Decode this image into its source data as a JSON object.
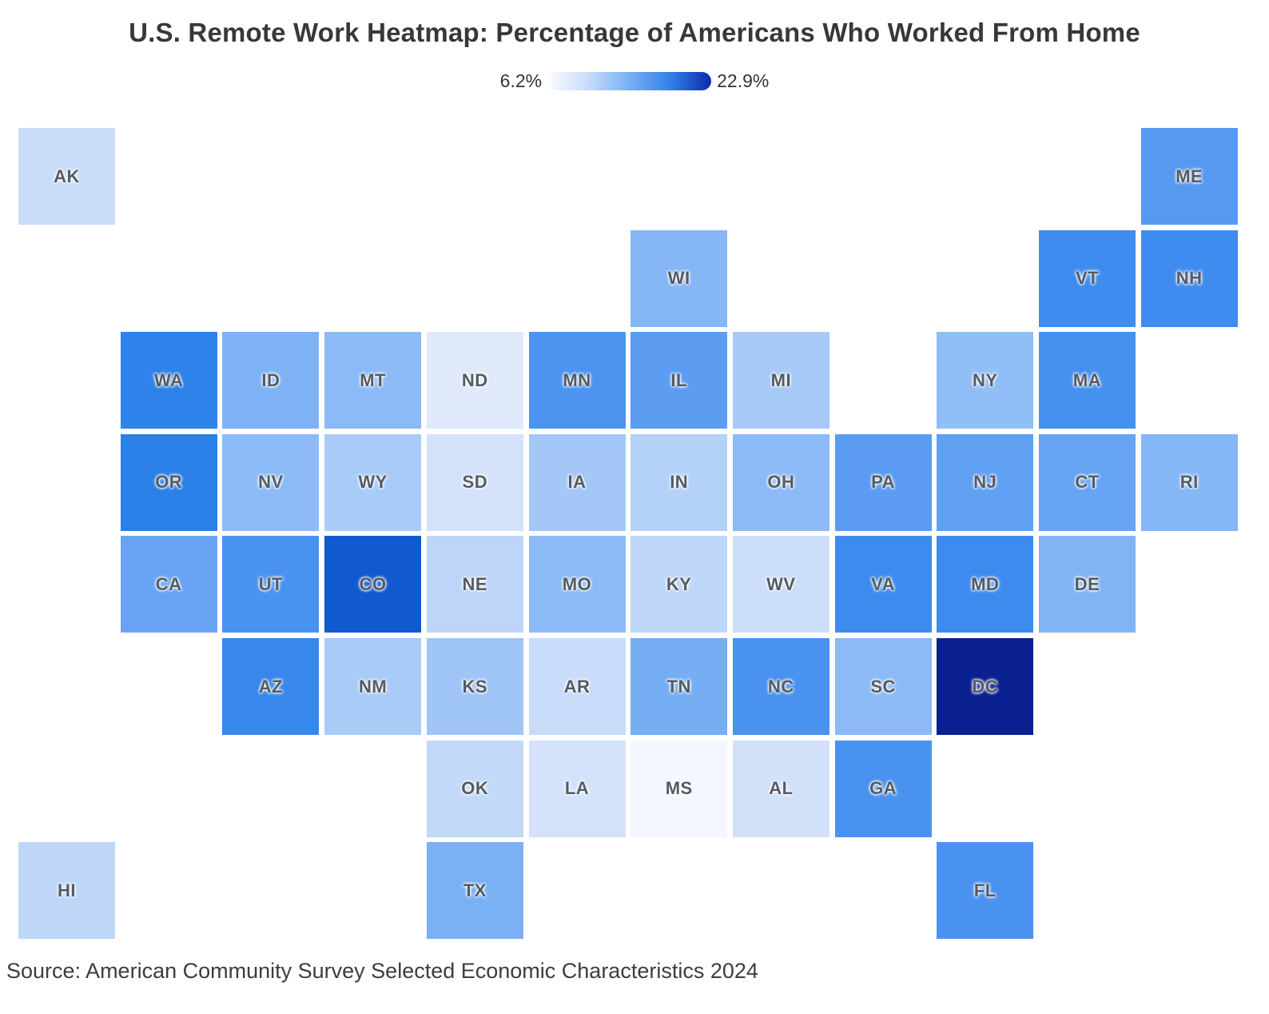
{
  "title": "U.S. Remote Work Heatmap: Percentage of Americans Who Worked From Home",
  "legend": {
    "min_label": "6.2%",
    "max_label": "22.9%",
    "gradient_stops": [
      "#fbfdff",
      "#c7dbf9",
      "#79b0f4",
      "#3081ea",
      "#0c2aad"
    ]
  },
  "source": "Source: American Community Survey Selected Economic Characteristics 2024",
  "chart_data": {
    "type": "heatmap",
    "subtype": "us-state-tile-grid",
    "unit": "%",
    "value_range": [
      6.2,
      22.9
    ],
    "legend_position": "top-center",
    "min_state": "MS",
    "max_state": "DC",
    "states": [
      {
        "abbr": "AK",
        "row": 1,
        "col": 1,
        "color": "#c9ddf8",
        "value_est_pct": 8.9
      },
      {
        "abbr": "ME",
        "row": 1,
        "col": 12,
        "color": "#5599f1",
        "value_est_pct": 14.4
      },
      {
        "abbr": "WI",
        "row": 2,
        "col": 7,
        "color": "#85b6f5",
        "value_est_pct": 12.0
      },
      {
        "abbr": "VT",
        "row": 2,
        "col": 11,
        "color": "#3e8cef",
        "value_est_pct": 15.5
      },
      {
        "abbr": "NH",
        "row": 2,
        "col": 12,
        "color": "#3e8cef",
        "value_est_pct": 15.5
      },
      {
        "abbr": "WA",
        "row": 3,
        "col": 2,
        "color": "#2e82e9",
        "value_est_pct": 16.4
      },
      {
        "abbr": "ID",
        "row": 3,
        "col": 3,
        "color": "#7fb2f4",
        "value_est_pct": 12.4
      },
      {
        "abbr": "MT",
        "row": 3,
        "col": 4,
        "color": "#8cbaf6",
        "value_est_pct": 11.7
      },
      {
        "abbr": "ND",
        "row": 3,
        "col": 5,
        "color": "#e0e9fa",
        "value_est_pct": 7.5
      },
      {
        "abbr": "MN",
        "row": 3,
        "col": 6,
        "color": "#4d94f0",
        "value_est_pct": 14.9
      },
      {
        "abbr": "IL",
        "row": 3,
        "col": 7,
        "color": "#5c9df1",
        "value_est_pct": 14.0
      },
      {
        "abbr": "MI",
        "row": 3,
        "col": 8,
        "color": "#a6c9f7",
        "value_est_pct": 10.5
      },
      {
        "abbr": "NY",
        "row": 3,
        "col": 10,
        "color": "#90bef6",
        "value_est_pct": 11.5
      },
      {
        "abbr": "MA",
        "row": 3,
        "col": 11,
        "color": "#4690ef",
        "value_est_pct": 15.3
      },
      {
        "abbr": "OR",
        "row": 4,
        "col": 2,
        "color": "#2b80e8",
        "value_est_pct": 16.6
      },
      {
        "abbr": "NV",
        "row": 4,
        "col": 3,
        "color": "#8cbaf6",
        "value_est_pct": 11.7
      },
      {
        "abbr": "WY",
        "row": 4,
        "col": 4,
        "color": "#a9cbf8",
        "value_est_pct": 10.4
      },
      {
        "abbr": "SD",
        "row": 4,
        "col": 5,
        "color": "#d4e2fa",
        "value_est_pct": 8.2
      },
      {
        "abbr": "IA",
        "row": 4,
        "col": 6,
        "color": "#a3c7f7",
        "value_est_pct": 10.7
      },
      {
        "abbr": "IN",
        "row": 4,
        "col": 7,
        "color": "#b4d1f8",
        "value_est_pct": 9.9
      },
      {
        "abbr": "OH",
        "row": 4,
        "col": 8,
        "color": "#8cbaf6",
        "value_est_pct": 11.7
      },
      {
        "abbr": "PA",
        "row": 4,
        "col": 9,
        "color": "#5b9cf2",
        "value_est_pct": 14.0
      },
      {
        "abbr": "NJ",
        "row": 4,
        "col": 10,
        "color": "#60a0f2",
        "value_est_pct": 13.9
      },
      {
        "abbr": "CT",
        "row": 4,
        "col": 11,
        "color": "#66a3f3",
        "value_est_pct": 13.7
      },
      {
        "abbr": "RI",
        "row": 4,
        "col": 12,
        "color": "#85b6f5",
        "value_est_pct": 12.0
      },
      {
        "abbr": "CA",
        "row": 5,
        "col": 2,
        "color": "#68a4f3",
        "value_est_pct": 13.5
      },
      {
        "abbr": "UT",
        "row": 5,
        "col": 3,
        "color": "#4a92f0",
        "value_est_pct": 15.0
      },
      {
        "abbr": "CO",
        "row": 5,
        "col": 4,
        "color": "#1159d0",
        "value_est_pct": 19.9
      },
      {
        "abbr": "NE",
        "row": 5,
        "col": 5,
        "color": "#bcd5f9",
        "value_est_pct": 9.5
      },
      {
        "abbr": "MO",
        "row": 5,
        "col": 6,
        "color": "#8cbaf6",
        "value_est_pct": 11.7
      },
      {
        "abbr": "KY",
        "row": 5,
        "col": 7,
        "color": "#bed7f9",
        "value_est_pct": 9.4
      },
      {
        "abbr": "WV",
        "row": 5,
        "col": 8,
        "color": "#ccdefa",
        "value_est_pct": 8.7
      },
      {
        "abbr": "VA",
        "row": 5,
        "col": 9,
        "color": "#3e8bef",
        "value_est_pct": 15.5
      },
      {
        "abbr": "MD",
        "row": 5,
        "col": 10,
        "color": "#3e8bef",
        "value_est_pct": 15.5
      },
      {
        "abbr": "DE",
        "row": 5,
        "col": 11,
        "color": "#80b4f5",
        "value_est_pct": 12.4
      },
      {
        "abbr": "AZ",
        "row": 6,
        "col": 3,
        "color": "#3787ec",
        "value_est_pct": 15.9
      },
      {
        "abbr": "NM",
        "row": 6,
        "col": 4,
        "color": "#a8cbf8",
        "value_est_pct": 10.4
      },
      {
        "abbr": "KS",
        "row": 6,
        "col": 5,
        "color": "#9fc5f7",
        "value_est_pct": 10.9
      },
      {
        "abbr": "AR",
        "row": 6,
        "col": 6,
        "color": "#c8dcfa",
        "value_est_pct": 8.9
      },
      {
        "abbr": "TN",
        "row": 6,
        "col": 7,
        "color": "#76aef4",
        "value_est_pct": 12.9
      },
      {
        "abbr": "NC",
        "row": 6,
        "col": 8,
        "color": "#4a92f0",
        "value_est_pct": 15.0
      },
      {
        "abbr": "SC",
        "row": 6,
        "col": 9,
        "color": "#8bbaf6",
        "value_est_pct": 11.7
      },
      {
        "abbr": "DC",
        "row": 6,
        "col": 10,
        "color": "#0a2090",
        "value_est_pct": 22.9
      },
      {
        "abbr": "OK",
        "row": 7,
        "col": 5,
        "color": "#c2d9f9",
        "value_est_pct": 9.2
      },
      {
        "abbr": "LA",
        "row": 7,
        "col": 6,
        "color": "#d4e3fb",
        "value_est_pct": 8.2
      },
      {
        "abbr": "MS",
        "row": 7,
        "col": 7,
        "color": "#f4f7fd",
        "value_est_pct": 6.2
      },
      {
        "abbr": "AL",
        "row": 7,
        "col": 8,
        "color": "#d2e1fa",
        "value_est_pct": 8.3
      },
      {
        "abbr": "GA",
        "row": 7,
        "col": 9,
        "color": "#4a92f0",
        "value_est_pct": 15.0
      },
      {
        "abbr": "HI",
        "row": 8,
        "col": 1,
        "color": "#bed7f9",
        "value_est_pct": 9.4
      },
      {
        "abbr": "TX",
        "row": 8,
        "col": 5,
        "color": "#7ab0f4",
        "value_est_pct": 12.7
      },
      {
        "abbr": "FL",
        "row": 8,
        "col": 10,
        "color": "#4a92f0",
        "value_est_pct": 15.0
      }
    ]
  }
}
